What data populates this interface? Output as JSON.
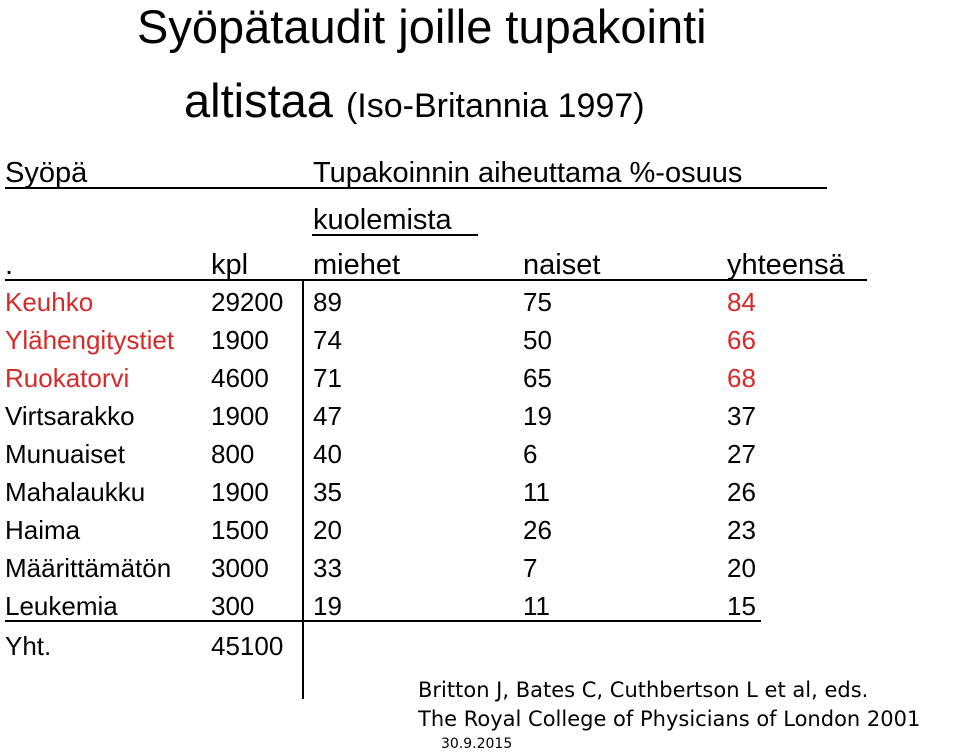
{
  "title": {
    "line1": "Syöpätaudit joille tupakointi",
    "line2_main": "altistaa",
    "line2_sub": "(Iso-Britannia 1997)"
  },
  "table": {
    "header": {
      "col1": "Syöpä",
      "group_line1": "Tupakoinnin aiheuttama %-osuus",
      "group_line2": "kuolemista",
      "dot": ".",
      "kpl": "kpl",
      "miehet": "miehet",
      "naiset": "naiset",
      "yhteensa": "yhteensä"
    },
    "rows": [
      {
        "name": "Keuhko",
        "kpl": "29200",
        "miehet": "89",
        "naiset": "75",
        "yht": "84",
        "highlight": true
      },
      {
        "name": "Ylähengitystiet",
        "kpl": "1900",
        "miehet": "74",
        "naiset": "50",
        "yht": "66",
        "highlight": true
      },
      {
        "name": "Ruokatorvi",
        "kpl": "4600",
        "miehet": "71",
        "naiset": "65",
        "yht": "68",
        "highlight": true
      },
      {
        "name": "Virtsarakko",
        "kpl": "1900",
        "miehet": "47",
        "naiset": "19",
        "yht": "37",
        "highlight": false
      },
      {
        "name": "Munuaiset",
        "kpl": "800",
        "miehet": "40",
        "naiset": "6",
        "yht": "27",
        "highlight": false
      },
      {
        "name": "Mahalaukku",
        "kpl": "1900",
        "miehet": "35",
        "naiset": "11",
        "yht": "26",
        "highlight": false
      },
      {
        "name": "Haima",
        "kpl": "1500",
        "miehet": "20",
        "naiset": "26",
        "yht": "23",
        "highlight": false
      },
      {
        "name": "Määrittämätön",
        "kpl": "3000",
        "miehet": "33",
        "naiset": "7",
        "yht": "20",
        "highlight": false
      },
      {
        "name": "Leukemia",
        "kpl": "300",
        "miehet": "19",
        "naiset": "11",
        "yht": "15",
        "highlight": false
      },
      {
        "name": "Yht.",
        "kpl": "45100",
        "miehet": "",
        "naiset": "",
        "yht": "",
        "highlight": false
      }
    ]
  },
  "citation": {
    "line1": "Britton J, Bates C, Cuthbertson L et al, eds.",
    "line2": "The Royal College of Physicians of London 2001"
  },
  "date": "30.9.2015",
  "colors": {
    "highlight": "#d42a2a",
    "text": "#000000",
    "background": "#ffffff"
  }
}
